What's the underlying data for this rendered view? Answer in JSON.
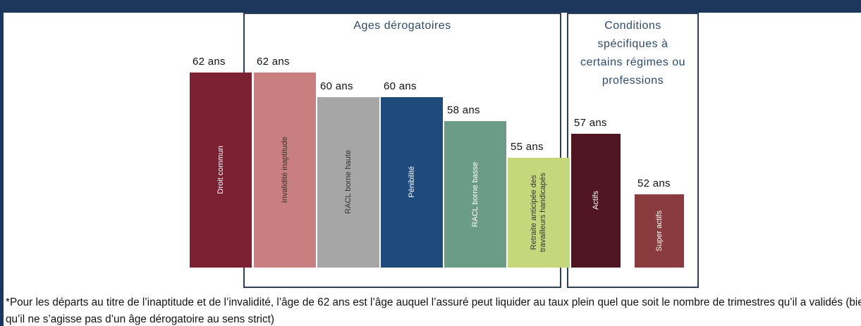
{
  "chart_data": {
    "type": "bar",
    "groups": [
      {
        "title": "Ages dérogatoires"
      },
      {
        "title": "Conditions spécifiques à certains régimes ou professions"
      }
    ],
    "categories": [
      "Droit commun",
      "Invalidité inaptitude",
      "RACL borne haute",
      "Pénibilité",
      "RACL borne basse",
      "Retraite anticipée des travailleurs handicapés",
      "Actifs",
      "Super actifs"
    ],
    "values": [
      62,
      62,
      60,
      60,
      58,
      55,
      57,
      52
    ],
    "value_labels": [
      "62 ans",
      "62 ans",
      "60 ans",
      "60 ans",
      "58 ans",
      "55 ans",
      "57 ans",
      "52 ans"
    ],
    "colors": [
      "#7b2131",
      "#c97f7f",
      "#a6a6a6",
      "#1f4a7c",
      "#6b9c88",
      "#c5d67d",
      "#4f1521",
      "#8a3b3d"
    ],
    "ylim": [
      46,
      62
    ]
  },
  "footnote": "*Pour les départs au titre de l’inaptitude et de l’invalidité, l’âge de 62 ans est l’âge auquel l’assuré peut liquider au taux plein quel que soit le nombre de trimestres qu’il a validés (bien qu’il ne s’agisse pas d’un âge dérogatoire au sens strict)"
}
